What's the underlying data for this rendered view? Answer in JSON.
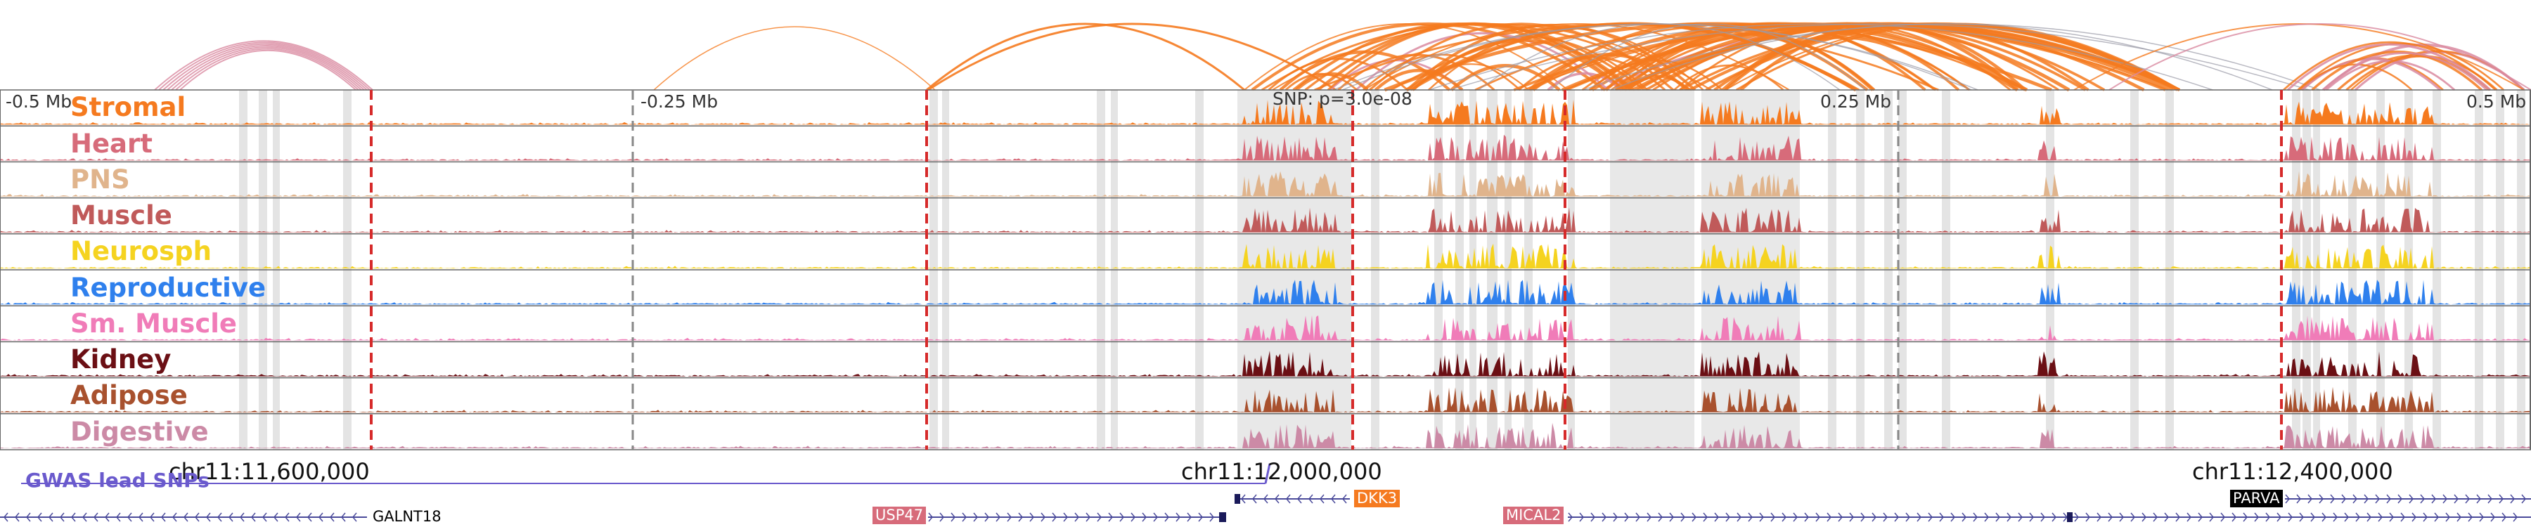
{
  "tracks": [
    {
      "label": "Stromal",
      "color": "#f57a1f"
    },
    {
      "label": "Heart",
      "color": "#d76b7a"
    },
    {
      "label": "PNS",
      "color": "#e0b48c"
    },
    {
      "label": "Muscle",
      "color": "#c05a5a"
    },
    {
      "label": "Neurosph",
      "color": "#f5d320"
    },
    {
      "label": "Reproductive",
      "color": "#2f80ed"
    },
    {
      "label": "Sm. Muscle",
      "color": "#f07cb8"
    },
    {
      "label": "Kidney",
      "color": "#6b0f14"
    },
    {
      "label": "Adipose",
      "color": "#a8512e"
    },
    {
      "label": "Digestive",
      "color": "#cc8aa6"
    }
  ],
  "position_labels": {
    "left": "-0.5 Mb",
    "mid_left": "-0.25 Mb",
    "mid_right": "0.25 Mb",
    "right": "0.5 Mb"
  },
  "snp_label": "SNP: p=3.0e-08",
  "coordinates": [
    "chr11:11,600,000",
    "chr11:12,000,000",
    "chr11:12,400,000"
  ],
  "gwas_label": "GWAS lead SNPs",
  "genes": [
    {
      "name": "GALNT18",
      "strand": "-",
      "boxed": false
    },
    {
      "name": "USP47",
      "strand": "+",
      "boxed": true,
      "box_color": "#d76b7a"
    },
    {
      "name": "DKK3",
      "strand": "-",
      "boxed": true,
      "box_color": "#f57a1f"
    },
    {
      "name": "MICAL2",
      "strand": "+",
      "boxed": true,
      "box_color": "#d76b7a"
    },
    {
      "name": "PARVA",
      "strand": "+",
      "boxed": true,
      "box_color": "#000000"
    }
  ],
  "colors": {
    "arc_orange": "#f57a1f",
    "arc_pink": "#d98aa0",
    "arc_gray": "#9a9aa6",
    "highlight": "#e2e2e2",
    "red_dash": "#d62a2a",
    "gwas_line": "#6a5acd",
    "gene_arrow": "#4a4a9a"
  }
}
